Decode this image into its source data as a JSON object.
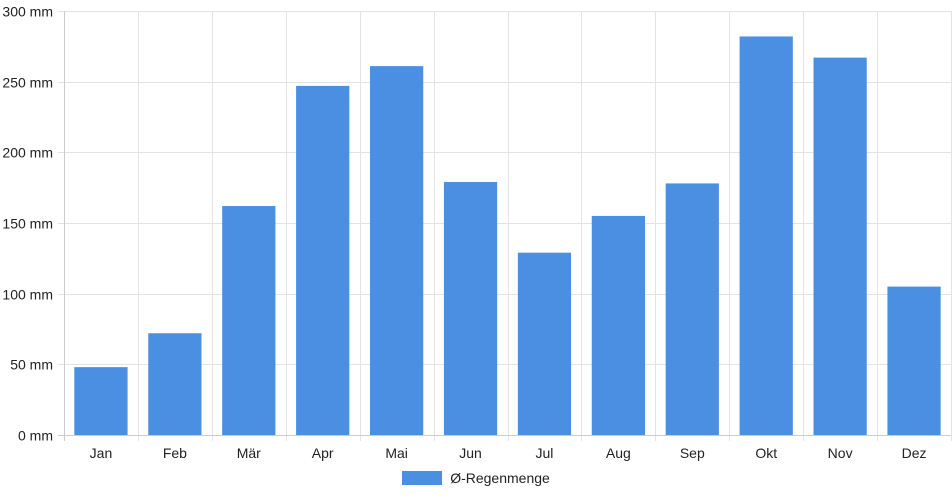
{
  "colors": {
    "bar": "#4a8fe2",
    "grid": "#e3e3e3",
    "axis": "#cccccc"
  },
  "chart_data": {
    "type": "bar",
    "categories": [
      "Jan",
      "Feb",
      "Mär",
      "Apr",
      "Mai",
      "Jun",
      "Jul",
      "Aug",
      "Sep",
      "Okt",
      "Nov",
      "Dez"
    ],
    "series": [
      {
        "name": "Ø-Regenmenge",
        "values": [
          48,
          72,
          162,
          247,
          261,
          179,
          129,
          155,
          178,
          282,
          267,
          105
        ]
      }
    ],
    "y_ticks": [
      0,
      50,
      100,
      150,
      200,
      250,
      300
    ],
    "y_unit": "mm",
    "ylim": [
      0,
      300
    ],
    "grid": true,
    "legend_position": "bottom"
  },
  "legend": {
    "label": "Ø-Regenmenge"
  }
}
